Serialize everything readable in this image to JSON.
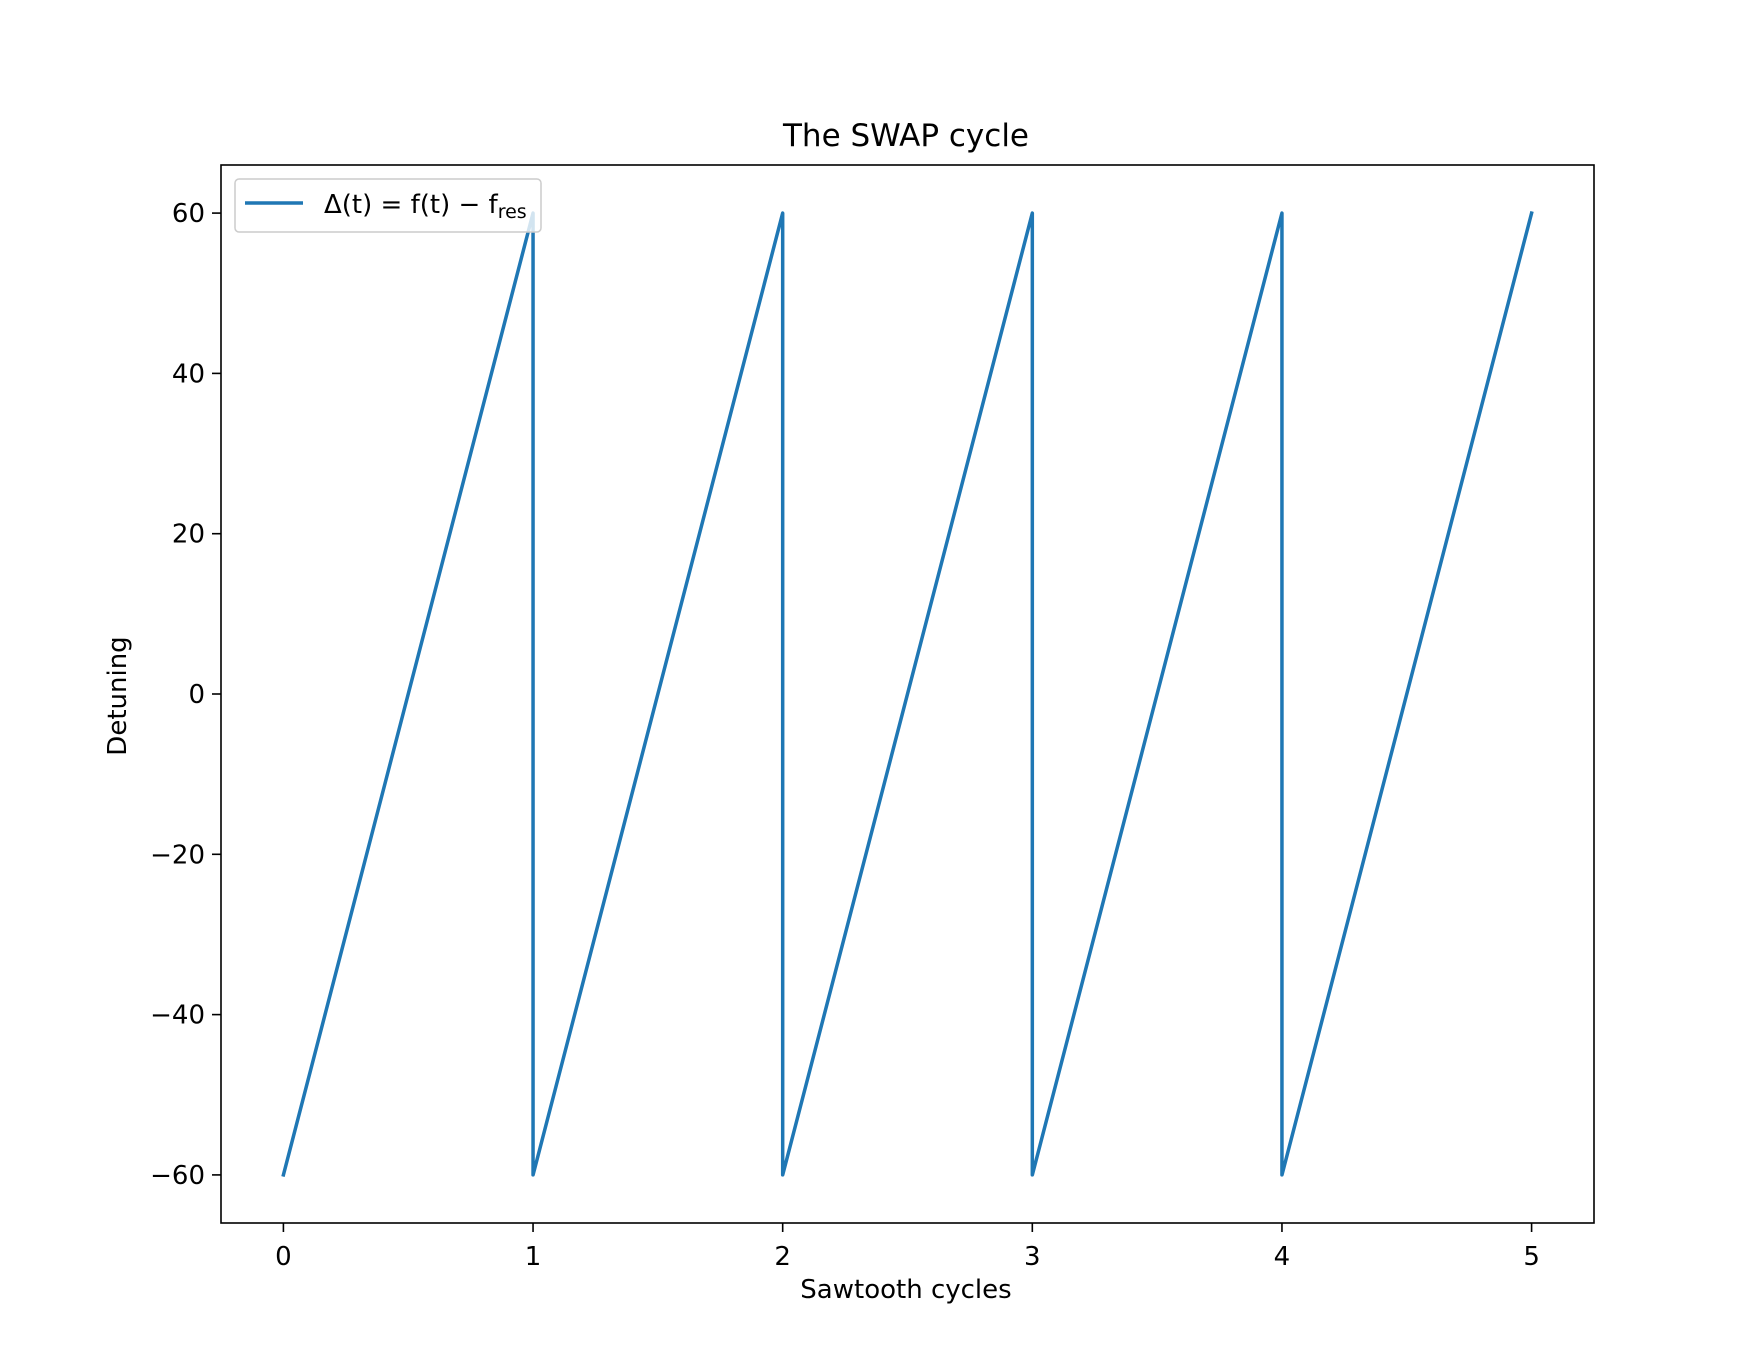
{
  "chart_data": {
    "type": "line",
    "title": "The SWAP cycle",
    "xlabel": "Sawtooth cycles",
    "ylabel": "Detuning",
    "xlim": [
      -0.25,
      5.25
    ],
    "ylim": [
      -66,
      66
    ],
    "xticks": [
      0,
      1,
      2,
      3,
      4,
      5
    ],
    "xtick_labels": [
      "0",
      "1",
      "2",
      "3",
      "4",
      "5"
    ],
    "yticks": [
      -60,
      -40,
      -20,
      0,
      20,
      40,
      60
    ],
    "ytick_labels": [
      "−60",
      "−40",
      "−20",
      "0",
      "20",
      "40",
      "60"
    ],
    "grid": false,
    "legend_position": "upper-left",
    "series": [
      {
        "name": "Δ(t) = f(t) − f_res",
        "legend_main": "Δ(t) = f(t) − f",
        "legend_sub": "res",
        "color": "#1f77b4",
        "x": [
          0,
          1,
          1,
          2,
          2,
          3,
          3,
          4,
          4,
          5
        ],
        "y": [
          -60,
          60,
          -60,
          60,
          -60,
          60,
          -60,
          60,
          -60,
          60
        ]
      }
    ]
  }
}
